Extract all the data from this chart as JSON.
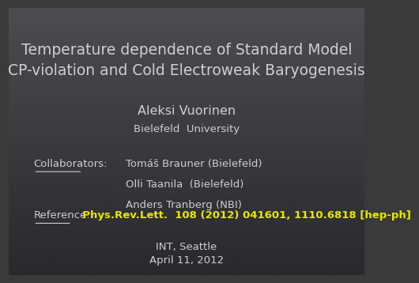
{
  "title_line1": "Temperature dependence of Standard Model",
  "title_line2": "CP-violation and Cold Electroweak Baryogenesis",
  "author": "Aleksi Vuorinen",
  "affiliation": "Bielefeld  University",
  "collab_label": "Collaborators:",
  "collaborators": [
    "Tomáš Brauner (Bielefeld)",
    "Olli Taanila  (Bielefeld)",
    "Anders Tranberg (NBI)"
  ],
  "ref_label": "Reference:",
  "ref_text": "  Phys.Rev.Lett.  108 (2012) 041601, 1110.6818 [hep-ph]",
  "venue_line1": "INT, Seattle",
  "venue_line2": "April 11, 2012",
  "text_color": "#d0d0d0",
  "yellow_color": "#e8e800",
  "title_fontsize": 13.5,
  "author_fontsize": 11.5,
  "body_fontsize": 9.5,
  "venue_fontsize": 9.5
}
